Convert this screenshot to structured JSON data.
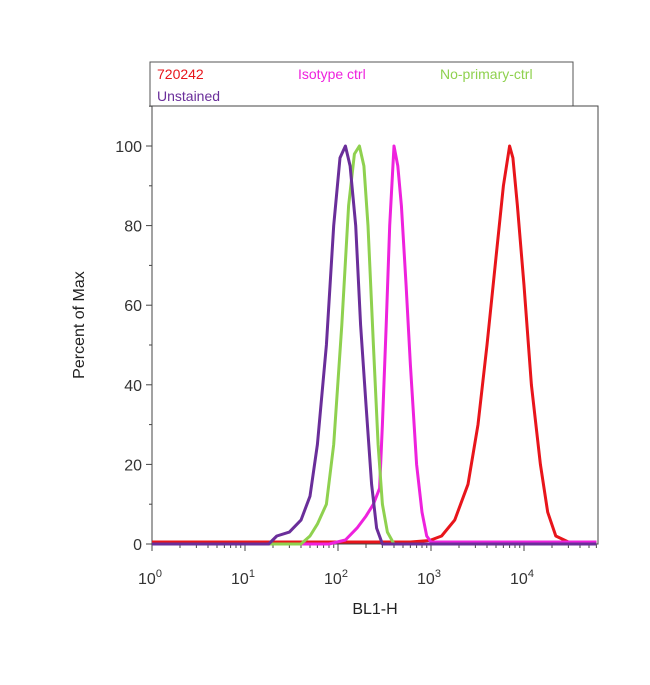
{
  "chart_data": {
    "type": "line",
    "xlabel": "BL1-H",
    "ylabel": "Percent of Max",
    "x_scale": "log",
    "xlim": [
      1,
      60000
    ],
    "ylim": [
      0,
      110
    ],
    "x_ticks": [
      {
        "value": 1,
        "base": "10",
        "exp": "0"
      },
      {
        "value": 10,
        "base": "10",
        "exp": "1"
      },
      {
        "value": 100,
        "base": "10",
        "exp": "2"
      },
      {
        "value": 1000,
        "base": "10",
        "exp": "3"
      },
      {
        "value": 10000,
        "base": "10",
        "exp": "4"
      }
    ],
    "y_ticks": [
      {
        "value": 0,
        "label": "0"
      },
      {
        "value": 20,
        "label": "20"
      },
      {
        "value": 40,
        "label": "40"
      },
      {
        "value": 60,
        "label": "60"
      },
      {
        "value": 80,
        "label": "80"
      },
      {
        "value": 100,
        "label": "100"
      }
    ],
    "legend_position": "top",
    "series": [
      {
        "name": "720242",
        "color": "#e8151b",
        "x": [
          1,
          100,
          300,
          600,
          900,
          1000,
          1300,
          1800,
          2500,
          3200,
          4000,
          5000,
          6000,
          7000,
          7600,
          8500,
          10000,
          12000,
          15000,
          18000,
          22000,
          30000,
          60000
        ],
        "y": [
          0.5,
          0.5,
          0.5,
          0.5,
          0.8,
          1,
          2,
          6,
          15,
          30,
          50,
          72,
          90,
          100,
          97,
          85,
          65,
          40,
          20,
          8,
          2,
          0.5,
          0.5
        ]
      },
      {
        "name": "Isotype ctrl",
        "color": "#ee22dd",
        "x": [
          1,
          80,
          120,
          160,
          200,
          240,
          280,
          300,
          330,
          360,
          400,
          440,
          480,
          540,
          600,
          700,
          800,
          900,
          1000,
          60000
        ],
        "y": [
          0,
          0,
          1,
          4,
          7,
          10,
          14,
          30,
          55,
          80,
          100,
          95,
          85,
          65,
          45,
          20,
          8,
          2,
          0.5,
          0.5
        ]
      },
      {
        "name": "No-primary-ctrl",
        "color": "#8fd14f",
        "x": [
          1,
          40,
          50,
          60,
          75,
          90,
          110,
          130,
          150,
          170,
          190,
          210,
          240,
          270,
          300,
          340,
          400,
          60000
        ],
        "y": [
          0,
          0,
          2,
          5,
          10,
          25,
          55,
          85,
          98,
          100,
          95,
          80,
          50,
          25,
          10,
          3,
          0,
          0
        ]
      },
      {
        "name": "Unstained",
        "color": "#6a2e9a",
        "x": [
          1,
          18,
          22,
          30,
          40,
          50,
          60,
          75,
          90,
          105,
          120,
          135,
          155,
          175,
          200,
          230,
          260,
          300,
          60000
        ],
        "y": [
          0,
          0,
          2,
          3,
          6,
          12,
          25,
          50,
          80,
          97,
          100,
          95,
          80,
          55,
          35,
          15,
          4,
          0,
          0
        ]
      }
    ]
  }
}
